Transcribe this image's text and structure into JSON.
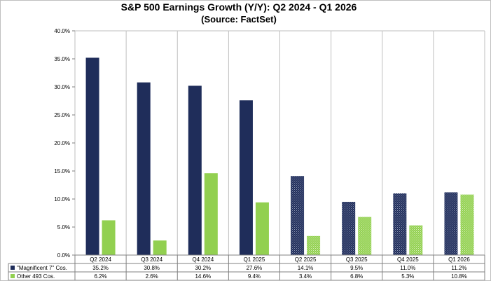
{
  "colors": {
    "magnificent": "#1f2d5a",
    "other": "#92d050",
    "grid": "#bfbfbf",
    "axis": "#808080"
  },
  "chart_data": {
    "type": "bar",
    "title": "S&P 500 Earnings Growth (Y/Y): Q2 2024 - Q1 2026",
    "subtitle": "(Source: FactSet)",
    "xlabel": "",
    "ylabel": "",
    "ylim": [
      0,
      40
    ],
    "yticks": [
      "0.0%",
      "5.0%",
      "10.0%",
      "15.0%",
      "20.0%",
      "25.0%",
      "30.0%",
      "35.0%",
      "40.0%"
    ],
    "grid": "vertical category dividers",
    "legend": "data table below chart",
    "categories": [
      "Q2 2024",
      "Q3 2024",
      "Q4 2024",
      "Q1 2025",
      "Q2 2025",
      "Q3 2025",
      "Q4 2025",
      "Q1 2026"
    ],
    "pattern_from_category_index": 4,
    "series": [
      {
        "name": "\"Magnificent 7\" Cos.",
        "values": [
          35.2,
          30.8,
          30.2,
          27.6,
          14.1,
          9.5,
          11.0,
          11.2
        ],
        "labels": [
          "35.2%",
          "30.8%",
          "30.2%",
          "27.6%",
          "14.1%",
          "9.5%",
          "11.0%",
          "11.2%"
        ]
      },
      {
        "name": "Other 493 Cos.",
        "values": [
          6.2,
          2.6,
          14.6,
          9.4,
          3.4,
          6.8,
          5.3,
          10.8
        ],
        "labels": [
          "6.2%",
          "2.6%",
          "14.6%",
          "9.4%",
          "3.4%",
          "6.8%",
          "5.3%",
          "10.8%"
        ]
      }
    ]
  }
}
